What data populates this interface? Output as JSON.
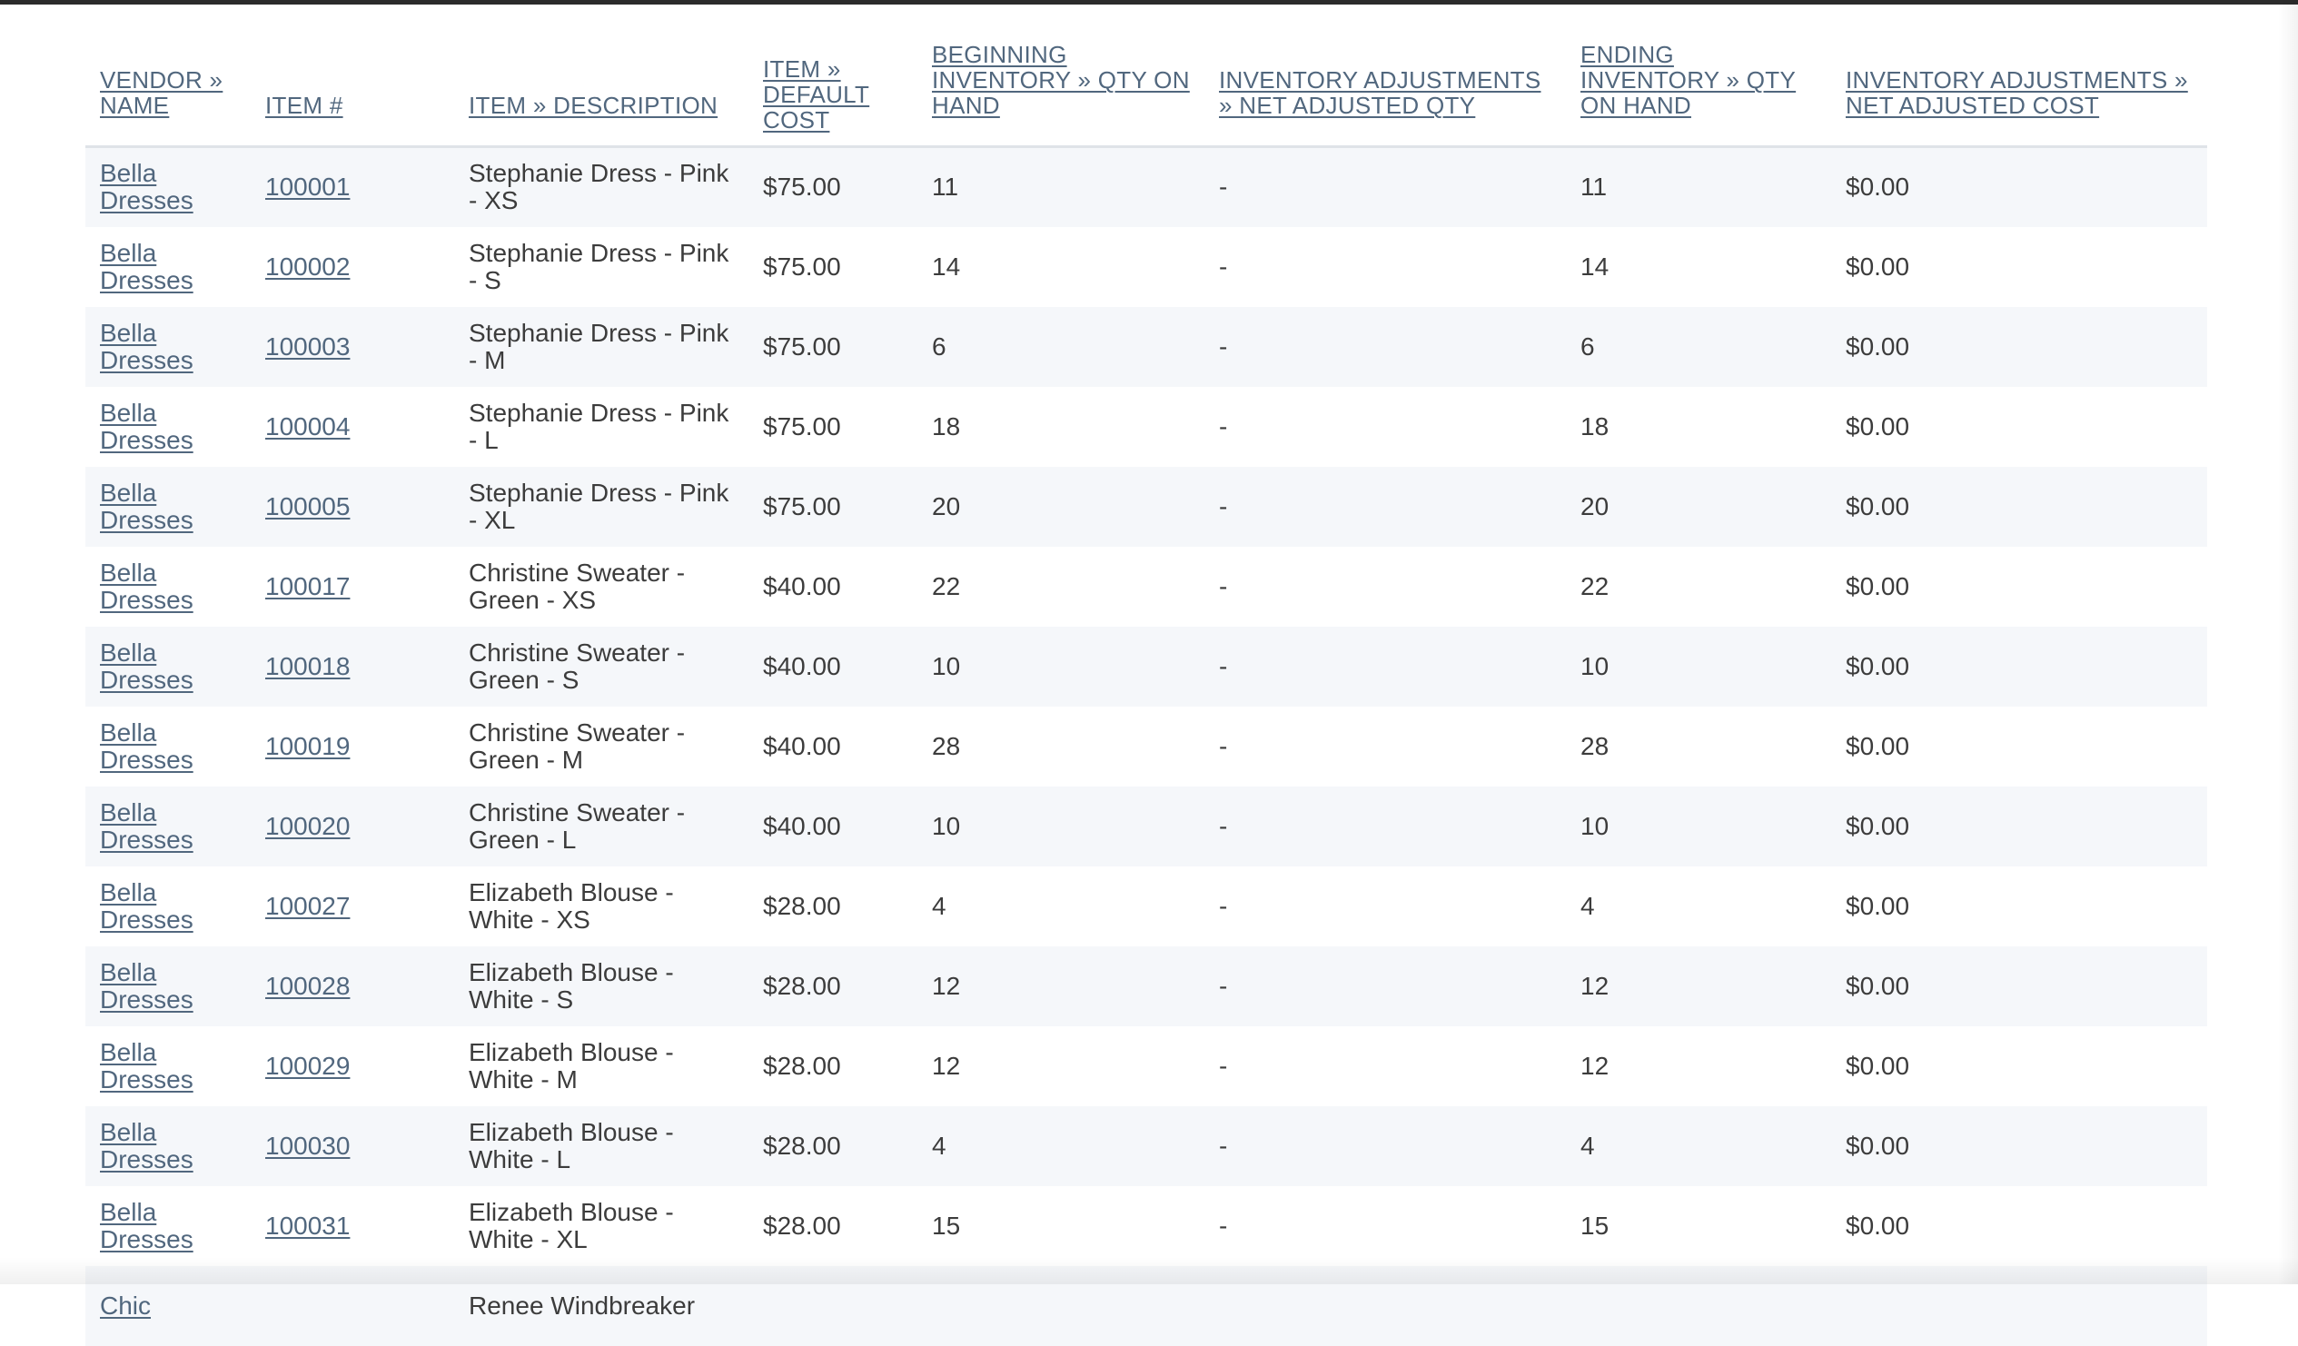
{
  "columns": [
    {
      "key": "vendor",
      "label": "VENDOR » NAME"
    },
    {
      "key": "item",
      "label": "ITEM #"
    },
    {
      "key": "desc",
      "label": "ITEM » DESCRIPTION"
    },
    {
      "key": "cost",
      "label": "ITEM » DEFAULT COST"
    },
    {
      "key": "begin",
      "label": "BEGINNING INVENTORY » QTY ON HAND"
    },
    {
      "key": "adjqty",
      "label": "INVENTORY ADJUSTMENTS » NET ADJUSTED QTY"
    },
    {
      "key": "end",
      "label": "ENDING INVENTORY » QTY ON HAND"
    },
    {
      "key": "adjcost",
      "label": "INVENTORY ADJUSTMENTS » NET ADJUSTED COST"
    }
  ],
  "rows": [
    {
      "vendor": "Bella Dresses",
      "item": "100001",
      "desc": "Stephanie Dress - Pink - XS",
      "cost": "$75.00",
      "begin": "11",
      "adjqty": "-",
      "end": "11",
      "adjcost": "$0.00"
    },
    {
      "vendor": "Bella Dresses",
      "item": "100002",
      "desc": "Stephanie Dress - Pink - S",
      "cost": "$75.00",
      "begin": "14",
      "adjqty": "-",
      "end": "14",
      "adjcost": "$0.00"
    },
    {
      "vendor": "Bella Dresses",
      "item": "100003",
      "desc": "Stephanie Dress - Pink - M",
      "cost": "$75.00",
      "begin": "6",
      "adjqty": "-",
      "end": "6",
      "adjcost": "$0.00"
    },
    {
      "vendor": "Bella Dresses",
      "item": "100004",
      "desc": "Stephanie Dress - Pink - L",
      "cost": "$75.00",
      "begin": "18",
      "adjqty": "-",
      "end": "18",
      "adjcost": "$0.00"
    },
    {
      "vendor": "Bella Dresses",
      "item": "100005",
      "desc": "Stephanie Dress - Pink - XL",
      "cost": "$75.00",
      "begin": "20",
      "adjqty": "-",
      "end": "20",
      "adjcost": "$0.00"
    },
    {
      "vendor": "Bella Dresses",
      "item": "100017",
      "desc": "Christine Sweater - Green - XS",
      "cost": "$40.00",
      "begin": "22",
      "adjqty": "-",
      "end": "22",
      "adjcost": "$0.00"
    },
    {
      "vendor": "Bella Dresses",
      "item": "100018",
      "desc": "Christine Sweater - Green - S",
      "cost": "$40.00",
      "begin": "10",
      "adjqty": "-",
      "end": "10",
      "adjcost": "$0.00"
    },
    {
      "vendor": "Bella Dresses",
      "item": "100019",
      "desc": "Christine Sweater - Green - M",
      "cost": "$40.00",
      "begin": "28",
      "adjqty": "-",
      "end": "28",
      "adjcost": "$0.00"
    },
    {
      "vendor": "Bella Dresses",
      "item": "100020",
      "desc": "Christine Sweater - Green - L",
      "cost": "$40.00",
      "begin": "10",
      "adjqty": "-",
      "end": "10",
      "adjcost": "$0.00"
    },
    {
      "vendor": "Bella Dresses",
      "item": "100027",
      "desc": "Elizabeth Blouse - White - XS",
      "cost": "$28.00",
      "begin": "4",
      "adjqty": "-",
      "end": "4",
      "adjcost": "$0.00"
    },
    {
      "vendor": "Bella Dresses",
      "item": "100028",
      "desc": "Elizabeth Blouse - White - S",
      "cost": "$28.00",
      "begin": "12",
      "adjqty": "-",
      "end": "12",
      "adjcost": "$0.00"
    },
    {
      "vendor": "Bella Dresses",
      "item": "100029",
      "desc": "Elizabeth Blouse - White - M",
      "cost": "$28.00",
      "begin": "12",
      "adjqty": "-",
      "end": "12",
      "adjcost": "$0.00"
    },
    {
      "vendor": "Bella Dresses",
      "item": "100030",
      "desc": "Elizabeth Blouse - White - L",
      "cost": "$28.00",
      "begin": "4",
      "adjqty": "-",
      "end": "4",
      "adjcost": "$0.00"
    },
    {
      "vendor": "Bella Dresses",
      "item": "100031",
      "desc": "Elizabeth Blouse - White - XL",
      "cost": "$28.00",
      "begin": "15",
      "adjqty": "-",
      "end": "15",
      "adjcost": "$0.00"
    },
    {
      "vendor": "Chic",
      "item": "",
      "desc": "Renee Windbreaker",
      "cost": "",
      "begin": "",
      "adjqty": "",
      "end": "",
      "adjcost": ""
    }
  ],
  "colors": {
    "link": "#51677e",
    "text": "#3c3c3c",
    "stripe": "#f5f7fa",
    "header_rule": "#dfe3e8"
  }
}
